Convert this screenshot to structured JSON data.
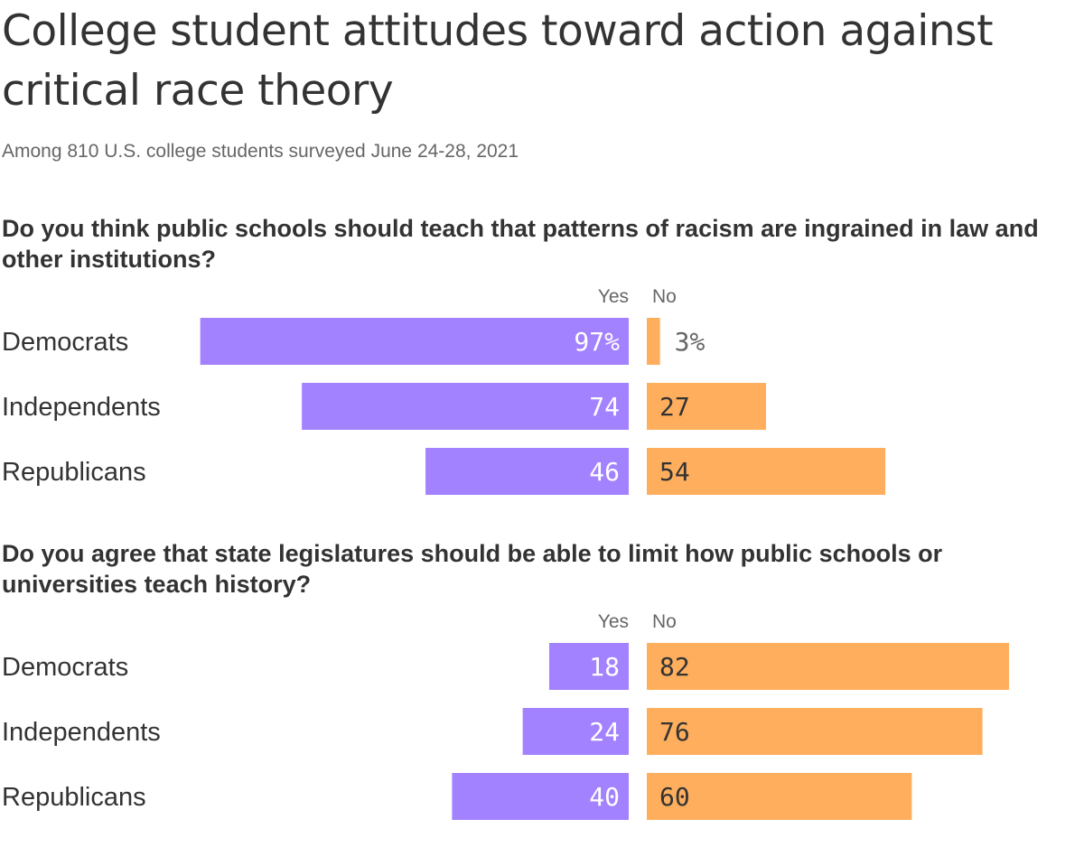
{
  "title": "College student attitudes toward action against critical race theory",
  "subtitle": "Among 810 U.S. college students surveyed June 24-28, 2021",
  "colors": {
    "yes": "#A382FF",
    "no": "#FFAE5E",
    "text": "#333333",
    "muted": "#666666"
  },
  "chart_data": [
    {
      "type": "bar",
      "orientation": "diverging-horizontal",
      "title": "Do you think public schools should teach that patterns of racism are ingrained in law and other institutions?",
      "categories": [
        "Democrats",
        "Independents",
        "Republicans"
      ],
      "series": [
        {
          "name": "Yes",
          "values": [
            97,
            74,
            46
          ],
          "labels": [
            "97%",
            "74",
            "46"
          ]
        },
        {
          "name": "No",
          "values": [
            3,
            27,
            54
          ],
          "labels": [
            "3%",
            "27",
            "54"
          ]
        }
      ],
      "unit": "%",
      "xlim": [
        0,
        100
      ]
    },
    {
      "type": "bar",
      "orientation": "diverging-horizontal",
      "title": "Do you agree that state legislatures should be able to limit how public schools or universities teach history?",
      "categories": [
        "Democrats",
        "Independents",
        "Republicans"
      ],
      "series": [
        {
          "name": "Yes",
          "values": [
            18,
            24,
            40
          ],
          "labels": [
            "18",
            "24",
            "40"
          ]
        },
        {
          "name": "No",
          "values": [
            82,
            76,
            60
          ],
          "labels": [
            "82",
            "76",
            "60"
          ]
        }
      ],
      "unit": "%",
      "xlim": [
        0,
        100
      ]
    }
  ]
}
